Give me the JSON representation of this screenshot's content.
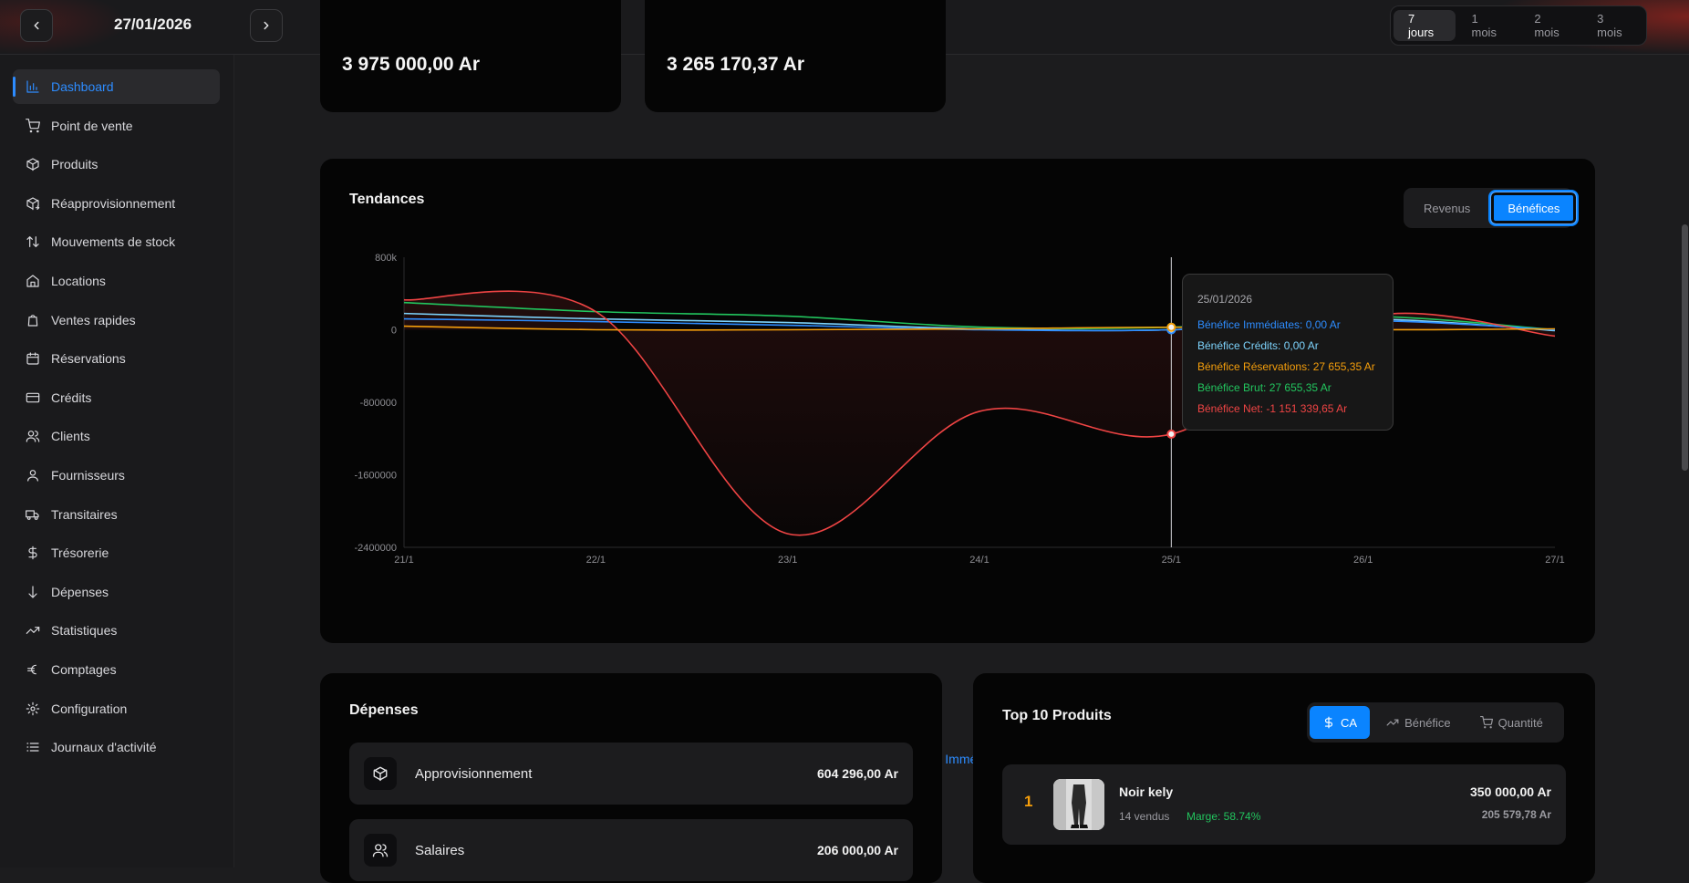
{
  "header": {
    "date": "27/01/2026",
    "ranges": [
      {
        "label": "7 jours",
        "active": true
      },
      {
        "label": "1 mois",
        "active": false
      },
      {
        "label": "2 mois",
        "active": false
      },
      {
        "label": "3 mois",
        "active": false
      }
    ]
  },
  "sidebar": {
    "items": [
      {
        "label": "Dashboard",
        "icon": "bar-chart-icon",
        "active": true
      },
      {
        "label": "Point de vente",
        "icon": "cart-icon"
      },
      {
        "label": "Produits",
        "icon": "package-icon"
      },
      {
        "label": "Réapprovisionnement",
        "icon": "package-refresh-icon"
      },
      {
        "label": "Mouvements de stock",
        "icon": "arrows-up-down-icon"
      },
      {
        "label": "Locations",
        "icon": "home-icon"
      },
      {
        "label": "Ventes rapides",
        "icon": "bag-icon"
      },
      {
        "label": "Réservations",
        "icon": "calendar-icon"
      },
      {
        "label": "Crédits",
        "icon": "credit-card-icon"
      },
      {
        "label": "Clients",
        "icon": "users-icon"
      },
      {
        "label": "Fournisseurs",
        "icon": "user-group-icon"
      },
      {
        "label": "Transitaires",
        "icon": "truck-icon"
      },
      {
        "label": "Trésorerie",
        "icon": "dollar-icon"
      },
      {
        "label": "Dépenses",
        "icon": "arrow-down-icon"
      },
      {
        "label": "Statistiques",
        "icon": "trending-up-icon"
      },
      {
        "label": "Comptages",
        "icon": "euro-icon"
      },
      {
        "label": "Configuration",
        "icon": "gear-icon"
      },
      {
        "label": "Journaux d'activité",
        "icon": "list-icon"
      }
    ]
  },
  "kpis": [
    {
      "value": "3 975 000,00 Ar"
    },
    {
      "value": "3 265 170,37 Ar"
    }
  ],
  "trends": {
    "title": "Tendances",
    "toggle": [
      {
        "label": "Revenus",
        "active": false
      },
      {
        "label": "Bénéfices",
        "active": true
      }
    ],
    "tooltip": {
      "date": "25/01/2026",
      "lines": [
        {
          "text": "Bénéfice Immédiates: 0,00 Ar",
          "color": "#2d8cff"
        },
        {
          "text": "Bénéfice Crédits: 0,00 Ar",
          "color": "#7dd3fc"
        },
        {
          "text": "Bénéfice Réservations: 27 655,35 Ar",
          "color": "#f59e0b"
        },
        {
          "text": "Bénéfice Brut: 27 655,35 Ar",
          "color": "#22c55e"
        },
        {
          "text": "Bénéfice Net: -1 151 339,65 Ar",
          "color": "#ef4444"
        }
      ]
    }
  },
  "chart_data": {
    "type": "line",
    "x": [
      "21/1",
      "22/1",
      "23/1",
      "24/1",
      "25/1",
      "26/1",
      "27/1"
    ],
    "y_ticks": [
      "800k",
      "0",
      "-800000",
      "-1600000",
      "-2400000"
    ],
    "ylim": [
      -2400000,
      800000
    ],
    "legend_placement": "bottom",
    "series": [
      {
        "name": "Bénéfice Brut",
        "color": "#22c55e",
        "values": [
          300000,
          200000,
          150000,
          30000,
          27655,
          150000,
          0
        ]
      },
      {
        "name": "Bénéfice Crédits",
        "color": "#7dd3fc",
        "values": [
          180000,
          120000,
          80000,
          10000,
          0,
          120000,
          -10000
        ]
      },
      {
        "name": "Bénéfice Immédiates",
        "color": "#2d8cff",
        "values": [
          120000,
          90000,
          50000,
          0,
          0,
          100000,
          0
        ]
      },
      {
        "name": "Bénéfice Net",
        "color": "#ef4444",
        "values": [
          330000,
          200000,
          -2250000,
          -900000,
          -1151340,
          130000,
          -70000
        ]
      },
      {
        "name": "Bénéfice Réservations",
        "color": "#f59e0b",
        "values": [
          40000,
          0,
          0,
          10000,
          27655,
          0,
          10000
        ]
      }
    ],
    "hover_index": 4
  },
  "expenses": {
    "title": "Dépenses",
    "items": [
      {
        "label": "Approvisionnement",
        "amount": "604 296,00 Ar",
        "icon": "package-icon"
      },
      {
        "label": "Salaires",
        "amount": "206 000,00 Ar",
        "icon": "users-icon"
      }
    ]
  },
  "top_products": {
    "title": "Top 10 Produits",
    "toggle": [
      {
        "label": "CA",
        "icon": "dollar-icon",
        "active": true
      },
      {
        "label": "Bénéfice",
        "icon": "trending-up-icon",
        "active": false
      },
      {
        "label": "Quantité",
        "icon": "cart-icon",
        "active": false
      }
    ],
    "items": [
      {
        "rank": "1",
        "name": "Noir kely",
        "sold": "14 vendus",
        "margin": "Marge: 58.74%",
        "revenue": "350 000,00 Ar",
        "profit": "205 579,78 Ar"
      }
    ]
  }
}
